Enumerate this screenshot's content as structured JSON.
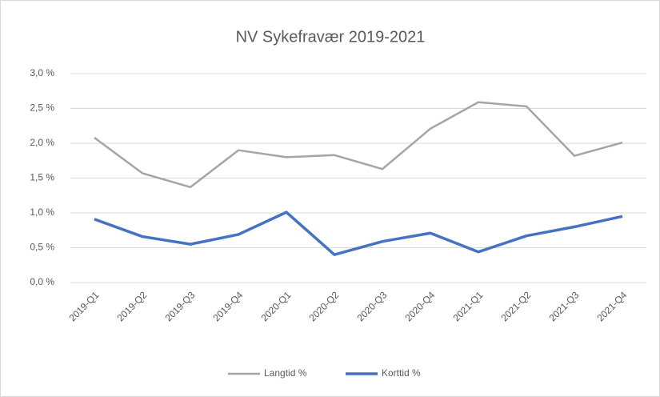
{
  "chart_data": {
    "type": "line",
    "title": "NV Sykefravær 2019-2021",
    "categories": [
      "2019-Q1",
      "2019-Q2",
      "2019-Q3",
      "2019-Q4",
      "2020-Q1",
      "2020-Q2",
      "2020-Q3",
      "2020-Q4",
      "2021-Q1",
      "2021-Q2",
      "2021-Q3",
      "2021-Q4"
    ],
    "series": [
      {
        "name": "Langtid %",
        "color": "#a5a5a5",
        "values": [
          2.08,
          1.57,
          1.37,
          1.9,
          1.8,
          1.83,
          1.63,
          2.21,
          2.59,
          2.53,
          1.82,
          2.01
        ]
      },
      {
        "name": "Korttid %",
        "color": "#4472c4",
        "values": [
          0.91,
          0.66,
          0.55,
          0.69,
          1.01,
          0.4,
          0.59,
          0.71,
          0.44,
          0.67,
          0.8,
          0.95
        ]
      }
    ],
    "ylim": [
      0,
      3.0
    ],
    "yticks": [
      {
        "value": 0,
        "label": "0,0 %"
      },
      {
        "value": 0.5,
        "label": "0,5 %"
      },
      {
        "value": 1.0,
        "label": "1,0 %"
      },
      {
        "value": 1.5,
        "label": "1,5 %"
      },
      {
        "value": 2.0,
        "label": "2,0 %"
      },
      {
        "value": 2.5,
        "label": "2,5 %"
      },
      {
        "value": 3.0,
        "label": "3,0 %"
      }
    ],
    "grid": true,
    "legend": "bottom"
  }
}
